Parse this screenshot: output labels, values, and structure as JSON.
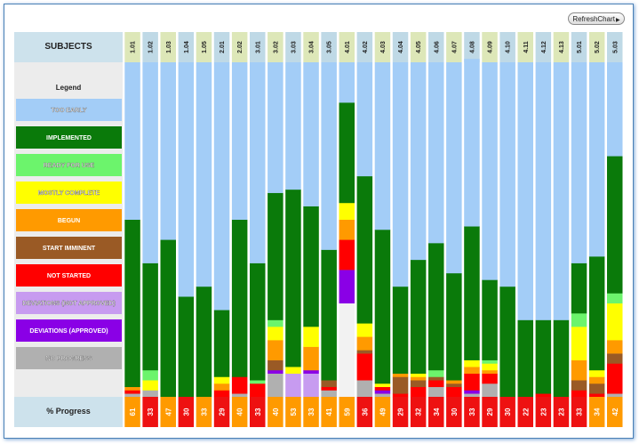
{
  "toolbar": {
    "refresh_label": "RefreshChart"
  },
  "header": {
    "subjects_label": "SUBJECTS",
    "legend_title": "Legend",
    "progress_label": "% Progress"
  },
  "chart_data": {
    "type": "bar",
    "stacked": true,
    "ylim": [
      0,
      100
    ],
    "categories": [
      "1.01",
      "1.02",
      "1.03",
      "1.04",
      "1.05",
      "2.01",
      "2.02",
      "3.01",
      "3.02",
      "3.03",
      "3.04",
      "3.05",
      "4.01",
      "4.02",
      "4.03",
      "4.04",
      "4.05",
      "4.06",
      "4.07",
      "4.08",
      "4.09",
      "4.10",
      "4.11",
      "4.12",
      "4.13",
      "5.01",
      "5.02",
      "5.03"
    ],
    "legend": [
      {
        "key": "too_early",
        "label": "TOO EARLY",
        "color": "#a3cdf7"
      },
      {
        "key": "implemented",
        "label": "IMPLEMENTED",
        "color": "#0a7a0a"
      },
      {
        "key": "ready",
        "label": "READY FOR USE",
        "color": "#6cf46c"
      },
      {
        "key": "mostly",
        "label": "MOSTLY COMPLETE",
        "color": "#ffff00"
      },
      {
        "key": "begun",
        "label": "BEGUN",
        "color": "#ff9a00"
      },
      {
        "key": "imminent",
        "label": "START IMMINENT",
        "color": "#9a5a25"
      },
      {
        "key": "not_started",
        "label": "NOT STARTED",
        "color": "#ff0000"
      },
      {
        "key": "dev_not_approved",
        "label": "DEVIATIONS (NOT APPROVED)",
        "color": "#c79bf0"
      },
      {
        "key": "dev_approved",
        "label": "DEVIATIONS (APPROVED)",
        "color": "#8a00e6"
      },
      {
        "key": "no_progress",
        "label": "NO PROGRESS",
        "color": "#b0b0b0"
      }
    ],
    "series": [
      {
        "key": "no_progress",
        "values": [
          1,
          2,
          0,
          0,
          0,
          0,
          1,
          0,
          7,
          0,
          0,
          2,
          28,
          5,
          1,
          0,
          0,
          3,
          0,
          1,
          4,
          0,
          0,
          0,
          0,
          0,
          0,
          1
        ]
      },
      {
        "key": "dev_not_approved",
        "values": [
          0,
          0,
          0,
          0,
          0,
          0,
          0,
          0,
          0,
          7,
          7,
          0,
          0,
          0,
          0,
          0,
          0,
          0,
          0,
          0,
          0,
          0,
          0,
          0,
          0,
          0,
          0,
          0
        ]
      },
      {
        "key": "dev_approved",
        "values": [
          0,
          0,
          0,
          0,
          0,
          0,
          0,
          0,
          1,
          0,
          1,
          0,
          10,
          0,
          1,
          0,
          0,
          0,
          0,
          1,
          0,
          0,
          0,
          0,
          0,
          0,
          0,
          0
        ]
      },
      {
        "key": "not_started",
        "values": [
          1,
          0,
          0,
          0,
          0,
          2,
          5,
          4,
          0,
          0,
          0,
          1,
          9,
          8,
          1,
          1,
          3,
          2,
          3,
          5,
          3,
          0,
          0,
          1,
          0,
          2,
          1,
          9
        ]
      },
      {
        "key": "imminent",
        "values": [
          0,
          0,
          0,
          0,
          0,
          0,
          0,
          0,
          3,
          0,
          0,
          2,
          0,
          1,
          0,
          5,
          2,
          1,
          1,
          0,
          0,
          0,
          0,
          0,
          0,
          3,
          3,
          3
        ]
      },
      {
        "key": "begun",
        "values": [
          1,
          0,
          0,
          0,
          0,
          2,
          0,
          0,
          6,
          0,
          7,
          0,
          6,
          4,
          0,
          1,
          1,
          0,
          1,
          2,
          1,
          0,
          0,
          0,
          0,
          6,
          2,
          4
        ]
      },
      {
        "key": "mostly",
        "values": [
          0,
          3,
          0,
          0,
          0,
          2,
          0,
          0,
          4,
          2,
          6,
          0,
          5,
          4,
          1,
          0,
          1,
          0,
          0,
          2,
          2,
          0,
          0,
          0,
          0,
          10,
          2,
          11
        ]
      },
      {
        "key": "ready",
        "values": [
          0,
          3,
          0,
          0,
          0,
          0,
          0,
          1,
          2,
          0,
          0,
          0,
          0,
          0,
          0,
          0,
          0,
          2,
          0,
          0,
          1,
          0,
          0,
          0,
          0,
          4,
          0,
          3
        ]
      },
      {
        "key": "implemented",
        "values": [
          50,
          32,
          47,
          30,
          33,
          20,
          47,
          35,
          38,
          53,
          36,
          39,
          30,
          44,
          46,
          26,
          34,
          38,
          32,
          40,
          24,
          33,
          23,
          22,
          23,
          15,
          34,
          41
        ]
      },
      {
        "key": "too_early",
        "values": [
          47,
          60,
          53,
          70,
          67,
          74,
          47,
          60,
          39,
          38,
          43,
          56,
          12,
          34,
          50,
          67,
          59,
          54,
          63,
          50,
          65,
          67,
          77,
          77,
          77,
          60,
          58,
          28
        ]
      }
    ],
    "progress": [
      61,
      33,
      47,
      30,
      33,
      29,
      40,
      33,
      40,
      53,
      33,
      41,
      59,
      36,
      49,
      29,
      32,
      34,
      30,
      33,
      29,
      30,
      22,
      23,
      23,
      33,
      34,
      42
    ]
  }
}
